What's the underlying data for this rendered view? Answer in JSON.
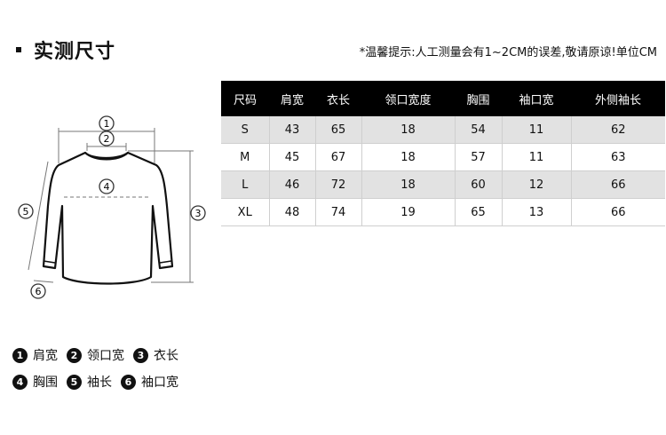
{
  "header": {
    "title": "实测尺寸",
    "note": "*温馨提示:人工测量会有1~2CM的误差,敬请原谅!单位CM"
  },
  "size_table": {
    "columns": [
      "尺码",
      "肩宽",
      "衣长",
      "领口宽度",
      "胸围",
      "袖口宽",
      "外侧袖长"
    ],
    "rows": [
      [
        "S",
        "43",
        "65",
        "18",
        "54",
        "11",
        "62"
      ],
      [
        "M",
        "45",
        "67",
        "18",
        "57",
        "11",
        "63"
      ],
      [
        "L",
        "46",
        "72",
        "18",
        "60",
        "12",
        "66"
      ],
      [
        "XL",
        "48",
        "74",
        "19",
        "65",
        "13",
        "66"
      ]
    ]
  },
  "diagram": {
    "markers": [
      "1",
      "2",
      "3",
      "4",
      "5",
      "6"
    ]
  },
  "legend": [
    {
      "num": "1",
      "label": "肩宽"
    },
    {
      "num": "2",
      "label": "领口宽"
    },
    {
      "num": "3",
      "label": "衣长"
    },
    {
      "num": "4",
      "label": "胸围"
    },
    {
      "num": "5",
      "label": "袖长"
    },
    {
      "num": "6",
      "label": "袖口宽"
    }
  ]
}
